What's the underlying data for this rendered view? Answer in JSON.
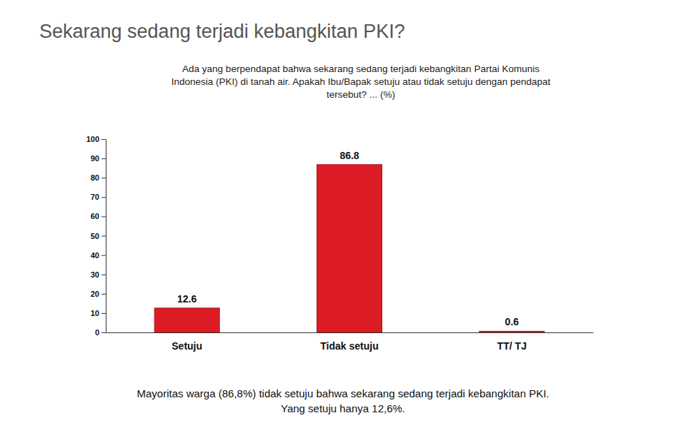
{
  "chart_data": {
    "type": "bar",
    "title": "Sekarang sedang terjadi kebangkitan PKI?",
    "subtitle": [
      "Ada yang berpendapat bahwa sekarang sedang terjadi kebangkitan Partai Komunis",
      "Indonesia (PKI) di tanah air. Apakah Ibu/Bapak setuju atau tidak setuju dengan pendapat",
      "tersebut? ... (%)"
    ],
    "categories": [
      "Setuju",
      "Tidak setuju",
      "TT/ TJ"
    ],
    "values": [
      12.6,
      86.8,
      0.6
    ],
    "color": "#dc1c24",
    "ylim": [
      0,
      100
    ],
    "yticks": [
      0,
      10,
      20,
      30,
      40,
      50,
      60,
      70,
      80,
      90,
      100
    ],
    "grid": false,
    "data_labels": true,
    "annotations": [
      "Mayoritas warga (86,8%) tidak setuju bahwa sekarang sedang terjadi kebangkitan PKI.",
      "Yang setuju hanya 12,6%."
    ]
  }
}
